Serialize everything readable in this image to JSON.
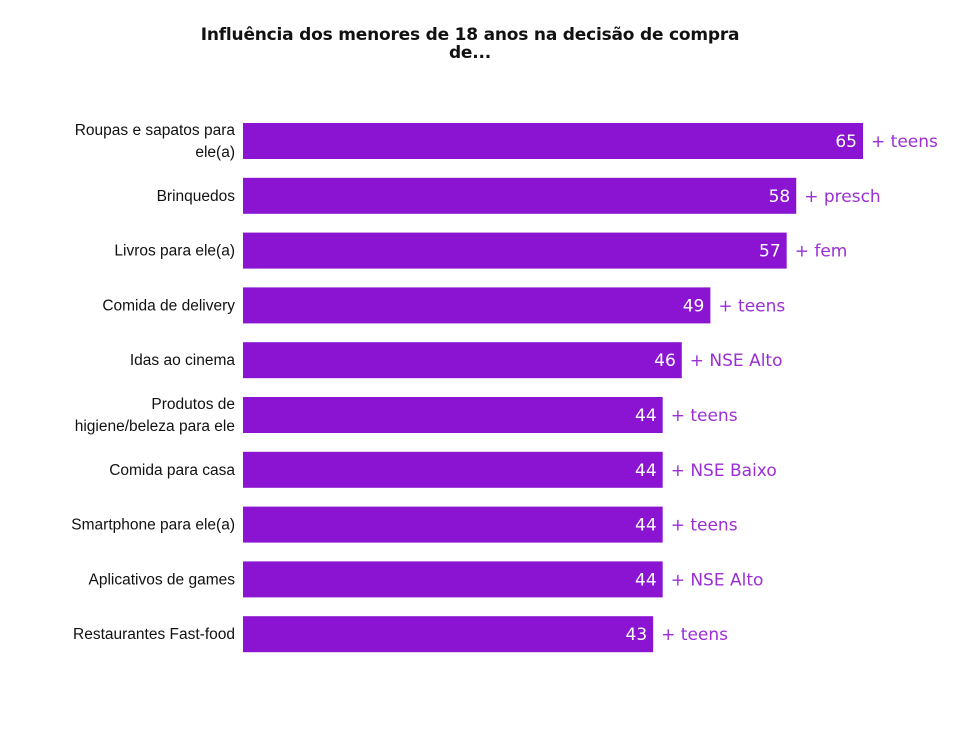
{
  "chart_data": {
    "type": "bar",
    "orientation": "horizontal",
    "title": "Influência dos menores de 18 anos na decisão de compra de...",
    "title_lines": [
      "Influência dos menores de 18 anos na decisão de compra",
      "de..."
    ],
    "categories": [
      [
        "Roupas e sapatos para",
        "ele(a)"
      ],
      [
        "Brinquedos"
      ],
      [
        "Livros para ele(a)"
      ],
      [
        "Comida de delivery"
      ],
      [
        "Idas ao cinema"
      ],
      [
        "Produtos de",
        "higiene/beleza para ele"
      ],
      [
        "Comida para casa"
      ],
      [
        "Smartphone para ele(a)"
      ],
      [
        "Aplicativos de games"
      ],
      [
        "Restaurantes Fast-food"
      ]
    ],
    "values": [
      65,
      58,
      57,
      49,
      46,
      44,
      44,
      44,
      44,
      43
    ],
    "annotations": [
      "+ teens",
      "+ presch",
      "+ fem",
      "+ teens",
      "+ NSE Alto",
      "+ teens",
      "+ NSE Baixo",
      "+ teens",
      "+ NSE Alto",
      "+ teens"
    ],
    "xlim": [
      0,
      65
    ],
    "grid": false,
    "legend": "none",
    "bar_color": "#8a14d2",
    "annotation_color": "#9b2fd3"
  }
}
